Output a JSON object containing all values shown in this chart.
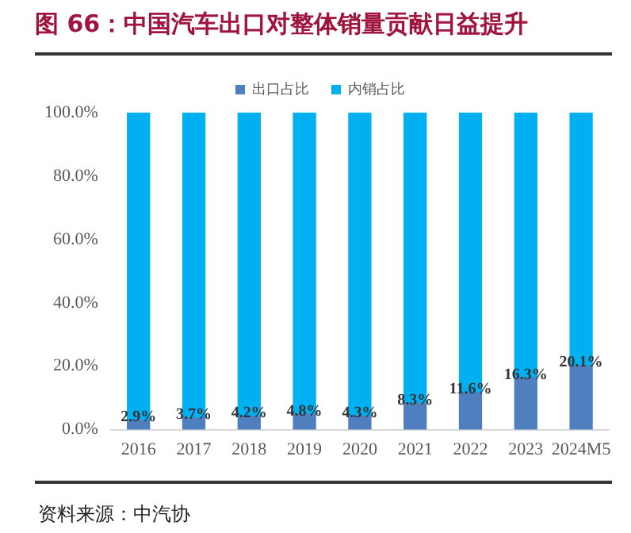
{
  "chart_data": {
    "type": "bar",
    "title": "图 66：中国汽车出口对整体销量贡献日益提升",
    "annotations": [
      "资料来源：中汽协"
    ],
    "categories": [
      "2016",
      "2017",
      "2018",
      "2019",
      "2020",
      "2021",
      "2022",
      "2023",
      "2024M5"
    ],
    "stacked": true,
    "legend": "top",
    "ylim": [
      0,
      100
    ],
    "yticks": [
      {
        "value": 0,
        "label": "0.0%"
      },
      {
        "value": 20,
        "label": "20.0%"
      },
      {
        "value": 40,
        "label": "40.0%"
      },
      {
        "value": 60,
        "label": "60.0%"
      },
      {
        "value": 80,
        "label": "80.0%"
      },
      {
        "value": 100,
        "label": "100.0%"
      }
    ],
    "series": [
      {
        "name": "出口占比",
        "color": "#4f7fbf",
        "values": [
          2.9,
          3.7,
          4.2,
          4.8,
          4.3,
          8.3,
          11.6,
          16.3,
          20.1
        ],
        "value_labels": [
          "2.9%",
          "3.7%",
          "4.2%",
          "4.8%",
          "4.3%",
          "8.3%",
          "11.6%",
          "16.3%",
          "20.1%"
        ]
      },
      {
        "name": "内销占比",
        "color": "#00b0f0",
        "values": [
          97.1,
          96.3,
          95.8,
          95.2,
          95.7,
          91.7,
          88.4,
          83.7,
          79.9
        ]
      }
    ]
  }
}
